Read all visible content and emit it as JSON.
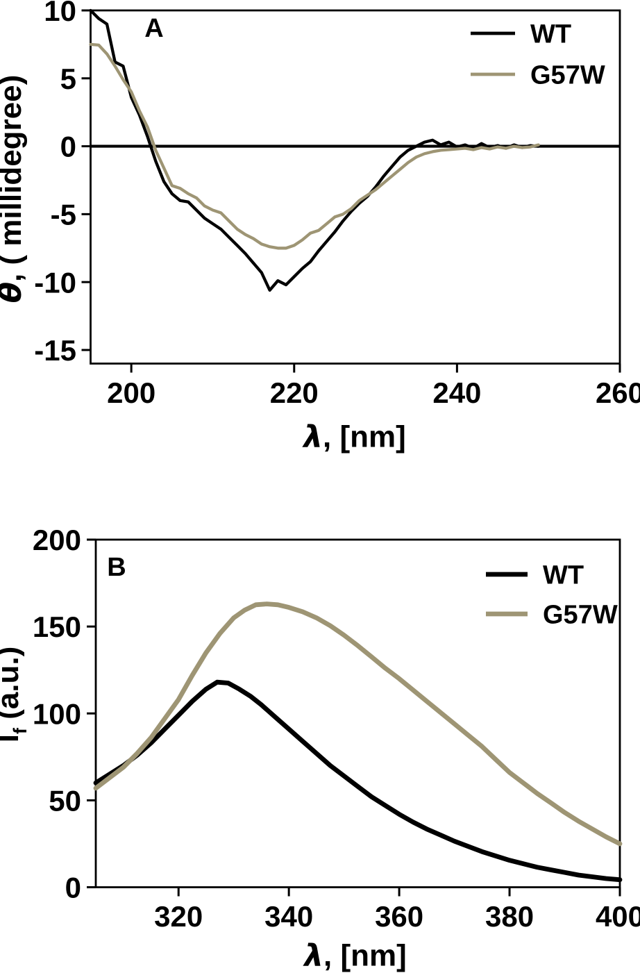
{
  "figure": {
    "background": "#ffffff",
    "axis_color": "#000000"
  },
  "chart_data": [
    {
      "id": "A",
      "panel_label": "A",
      "type": "line",
      "xlabel_segments": [
        {
          "t": "λ",
          "italic": true
        },
        {
          "t": ", [nm]"
        }
      ],
      "ylabel_segments": [
        {
          "t": "θ",
          "italic": true
        },
        {
          "t": ", ( millidegree)"
        }
      ],
      "xlim": [
        195,
        260
      ],
      "ylim": [
        -16,
        10
      ],
      "xticks": [
        200,
        220,
        240,
        260
      ],
      "yticks": [
        10,
        5,
        0,
        -5,
        -10,
        -15
      ],
      "grid": false,
      "zero_line": true,
      "legend_position": "top-right",
      "legend": [
        {
          "label": "WT",
          "color": "#000000"
        },
        {
          "label": "G57W",
          "color": "#9e9574"
        }
      ],
      "series": [
        {
          "name": "WT",
          "color": "#000000",
          "x_start": 195,
          "x_step": 1,
          "y": [
            10,
            9.4,
            9,
            6.2,
            5.9,
            3.6,
            2.3,
            0.7,
            -1.1,
            -2.6,
            -3.5,
            -4,
            -4.1,
            -4.7,
            -5.3,
            -5.7,
            -6.1,
            -6.7,
            -7.3,
            -7.9,
            -8.6,
            -9.3,
            -10.6,
            -9.9,
            -10.2,
            -9.6,
            -9,
            -8.5,
            -7.7,
            -7,
            -6.3,
            -5.5,
            -4.8,
            -4.2,
            -3.7,
            -3,
            -2.2,
            -1.5,
            -0.8,
            -0.3,
            0,
            0.3,
            0.45,
            0.1,
            0.3,
            -0.05,
            0.1,
            -0.15,
            0.2,
            -0.1,
            0.05,
            -0.15,
            0.1,
            -0.1,
            0.05,
            0
          ]
        },
        {
          "name": "G57W",
          "color": "#9e9574",
          "x_start": 195,
          "x_step": 1,
          "y": [
            7.5,
            7.45,
            6.8,
            5.9,
            4.9,
            4,
            2.6,
            1.4,
            -0.3,
            -1.6,
            -2.9,
            -3.1,
            -3.5,
            -3.8,
            -4.4,
            -4.7,
            -4.9,
            -5.5,
            -6.1,
            -6.5,
            -6.8,
            -7.2,
            -7.4,
            -7.5,
            -7.5,
            -7.3,
            -6.9,
            -6.4,
            -6.2,
            -5.7,
            -5.2,
            -5,
            -4.6,
            -4,
            -3.6,
            -3.2,
            -2.7,
            -2.2,
            -1.7,
            -1.2,
            -0.8,
            -0.55,
            -0.4,
            -0.3,
            -0.25,
            -0.2,
            -0.15,
            -0.25,
            -0.1,
            -0.2,
            -0.05,
            -0.15,
            0,
            -0.1,
            -0.05,
            0.1
          ]
        }
      ]
    },
    {
      "id": "B",
      "panel_label": "B",
      "type": "line",
      "xlabel_segments": [
        {
          "t": "λ",
          "italic": true
        },
        {
          "t": ", [nm]"
        }
      ],
      "ylabel_segments": [
        {
          "t": "I"
        },
        {
          "t": "f",
          "sub": true
        },
        {
          "t": " (a.u.)"
        }
      ],
      "xlim": [
        305,
        400
      ],
      "ylim": [
        0,
        200
      ],
      "xticks": [
        320,
        340,
        360,
        380,
        400
      ],
      "yticks": [
        200,
        150,
        100,
        50,
        0
      ],
      "grid": false,
      "zero_line": false,
      "legend_position": "top-right",
      "legend": [
        {
          "label": "WT",
          "color": "#000000"
        },
        {
          "label": "G57W",
          "color": "#9e9574"
        }
      ],
      "series": [
        {
          "name": "WT",
          "color": "#000000",
          "x": [
            305,
            307.5,
            310,
            312.5,
            315,
            317.5,
            320,
            322.5,
            325,
            327,
            329,
            331,
            333,
            335,
            337.5,
            340,
            342.5,
            345,
            347.5,
            350,
            352.5,
            355,
            357.5,
            360,
            362.5,
            365,
            367.5,
            370,
            372.5,
            375,
            377.5,
            380,
            382.5,
            385,
            387.5,
            390,
            392.5,
            395,
            397.5,
            400
          ],
          "y": [
            60,
            65,
            70,
            76,
            83,
            91,
            99,
            107,
            114,
            118,
            117.5,
            114,
            110,
            105,
            98,
            91,
            84,
            77,
            70,
            64,
            58,
            52,
            47,
            42,
            37.5,
            33.5,
            30,
            26.5,
            23.5,
            20.5,
            18,
            15.5,
            13.5,
            11.5,
            10,
            8.5,
            7,
            6,
            5,
            4.3
          ]
        },
        {
          "name": "G57W",
          "color": "#9e9574",
          "x": [
            305,
            307.5,
            310,
            312.5,
            315,
            317.5,
            320,
            322.5,
            325,
            327.5,
            330,
            332,
            334,
            336,
            338,
            340,
            342.5,
            345,
            347.5,
            350,
            352.5,
            355,
            357.5,
            360,
            362.5,
            365,
            367.5,
            370,
            372.5,
            375,
            377.5,
            380,
            382.5,
            385,
            387.5,
            390,
            392.5,
            395,
            397.5,
            400
          ],
          "y": [
            57,
            63,
            69,
            77,
            86,
            97,
            108,
            122,
            135,
            146,
            155,
            159.5,
            162.5,
            163,
            162.5,
            161,
            158.5,
            155,
            150.5,
            145,
            139,
            132.5,
            126,
            120,
            113.5,
            107,
            100.5,
            94,
            87.5,
            81,
            73.5,
            66,
            60,
            54,
            48.5,
            43,
            38,
            33.5,
            29,
            25
          ]
        }
      ]
    }
  ]
}
